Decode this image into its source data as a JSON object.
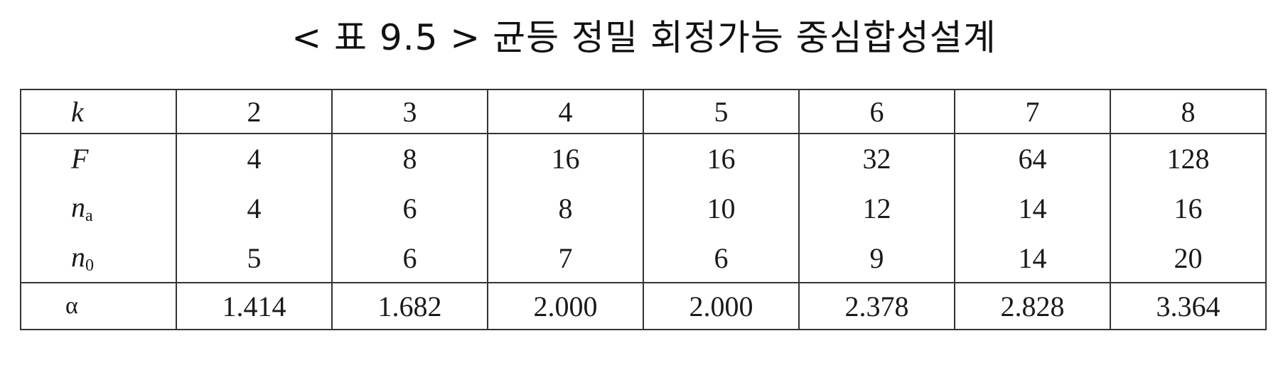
{
  "title": "< 표 9.5 > 균등 정밀 회정가능 중심합성설계",
  "table": {
    "rows": [
      {
        "label": "k",
        "values": [
          "2",
          "3",
          "4",
          "5",
          "6",
          "7",
          "8"
        ]
      },
      {
        "label": "F",
        "values": [
          "4",
          "8",
          "16",
          "16",
          "32",
          "64",
          "128"
        ]
      },
      {
        "label": "n",
        "label_sub": "a",
        "values": [
          "4",
          "6",
          "8",
          "10",
          "12",
          "14",
          "16"
        ]
      },
      {
        "label": "n",
        "label_sub": "0",
        "values": [
          "5",
          "6",
          "7",
          "6",
          "9",
          "14",
          "20"
        ]
      },
      {
        "label": "α",
        "values": [
          "1.414",
          "1.682",
          "2.000",
          "2.000",
          "2.378",
          "2.828",
          "3.364"
        ]
      }
    ]
  }
}
